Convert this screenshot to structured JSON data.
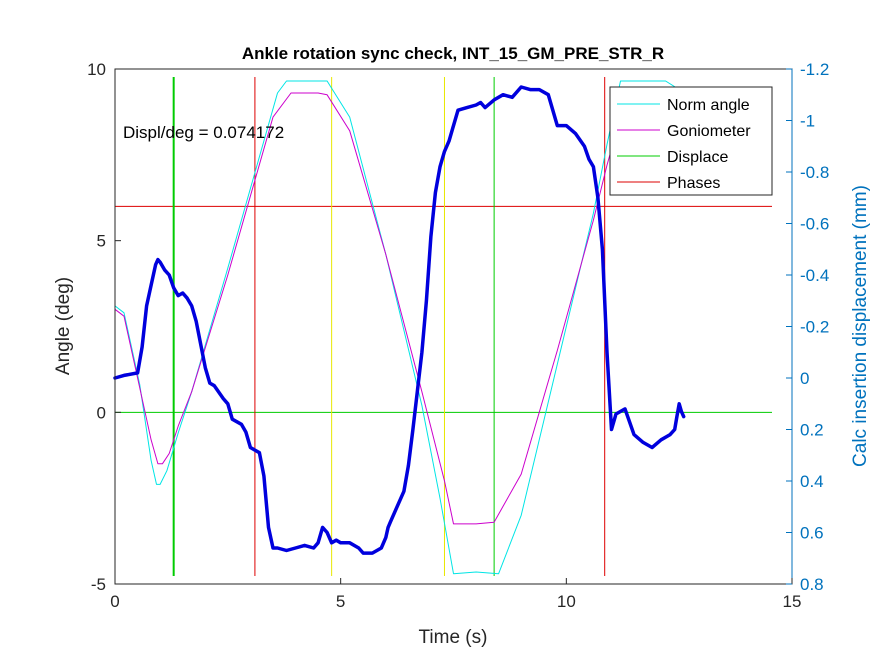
{
  "chart_data": {
    "type": "line",
    "title": "Ankle rotation sync check, INT_15_GM_PRE_STR_R",
    "xlabel": "Time (s)",
    "ylabel_left": "Angle (deg)",
    "ylabel_right": "Calc insertion displacement (mm)",
    "xlim": [
      0,
      15
    ],
    "ylim_left": [
      -5,
      10
    ],
    "ylim_right": [
      0.8,
      -1.2
    ],
    "right_axis_reversed": true,
    "x_ticks": [
      0,
      5,
      10,
      15
    ],
    "x_tick_labels": [
      "0",
      "5",
      "10",
      "15"
    ],
    "y_left_ticks": [
      -5,
      0,
      5,
      10
    ],
    "y_left_tick_labels": [
      "-5",
      "0",
      "5",
      "10"
    ],
    "y_right_ticks": [
      0.8,
      0.6,
      0.4,
      0.2,
      0,
      -0.2,
      -0.4,
      -0.6,
      -0.8,
      -1,
      -1.2
    ],
    "y_right_tick_labels": [
      "0.8",
      "0.6",
      "0.4",
      "0.2",
      "0",
      "-0.2",
      "-0.4",
      "-0.6",
      "-0.8",
      "-1",
      "-1.2"
    ],
    "annotation": "Displ/deg = 0.074172",
    "legend_position": "top-right",
    "legend": [
      {
        "label": "Norm angle",
        "color": "#00e5e5"
      },
      {
        "label": "Goniometer",
        "color": "#cc00cc"
      },
      {
        "label": "Displace",
        "color": "#00cc00"
      },
      {
        "label": "Phases",
        "color": "#dd0000"
      }
    ],
    "series": [
      {
        "name": "Norm angle",
        "axis": "left",
        "color": "#00e5e5",
        "x": [
          0,
          0.2,
          0.55,
          0.8,
          0.92,
          1.0,
          1.15,
          1.4,
          1.7,
          2.5,
          3.6,
          3.8,
          4.5,
          4.7,
          5.2,
          6.0,
          6.8,
          7.2,
          7.5,
          8.0,
          8.5,
          9.0,
          9.8,
          10.6,
          10.9,
          11.2,
          11.7,
          12.2,
          12.5
        ],
        "y": [
          3.1,
          2.9,
          0.8,
          -1.4,
          -2.1,
          -2.1,
          -1.7,
          -0.6,
          0.6,
          4.2,
          9.3,
          9.65,
          9.65,
          9.65,
          8.6,
          4.6,
          0.2,
          -2.5,
          -4.7,
          -4.65,
          -4.7,
          -3.0,
          1.4,
          5.8,
          7.8,
          9.65,
          9.65,
          9.65,
          9.4
        ]
      },
      {
        "name": "Goniometer",
        "axis": "left",
        "color": "#cc00cc",
        "x": [
          0,
          0.2,
          0.5,
          0.8,
          0.95,
          1.05,
          1.2,
          1.4,
          1.7,
          2.5,
          3.5,
          3.9,
          4.5,
          4.7,
          5.2,
          6.0,
          6.8,
          7.3,
          7.5,
          8.0,
          8.4,
          9.0,
          9.8,
          10.6,
          10.9,
          11.2,
          11.7,
          12.2,
          12.5
        ],
        "y": [
          3.0,
          2.8,
          1.0,
          -0.8,
          -1.5,
          -1.5,
          -1.2,
          -0.4,
          0.6,
          4.0,
          8.6,
          9.3,
          9.3,
          9.25,
          8.2,
          4.6,
          0.6,
          -2.0,
          -3.25,
          -3.25,
          -3.2,
          -1.8,
          1.8,
          5.6,
          7.2,
          8.6,
          9.2,
          9.2,
          9.1
        ]
      },
      {
        "name": "Displace",
        "axis": "right",
        "color": "#0000dd",
        "x": [
          0,
          0.2,
          0.5,
          0.6,
          0.7,
          0.8,
          0.9,
          0.95,
          1.0,
          1.1,
          1.2,
          1.3,
          1.4,
          1.5,
          1.6,
          1.7,
          1.8,
          2.0,
          2.1,
          2.2,
          2.4,
          2.5,
          2.6,
          2.8,
          2.9,
          3.0,
          3.1,
          3.2,
          3.3,
          3.4,
          3.5,
          3.6,
          3.8,
          4.0,
          4.2,
          4.4,
          4.5,
          4.6,
          4.7,
          4.8,
          4.9,
          5.0,
          5.2,
          5.4,
          5.5,
          5.7,
          5.9,
          6.0,
          6.05,
          6.1,
          6.2,
          6.4,
          6.5,
          6.6,
          6.7,
          6.8,
          6.9,
          7.0,
          7.1,
          7.2,
          7.3,
          7.4,
          7.5,
          7.6,
          7.8,
          8.0,
          8.1,
          8.2,
          8.4,
          8.6,
          8.8,
          9.0,
          9.2,
          9.4,
          9.6,
          9.8,
          10.0,
          10.2,
          10.4,
          10.5,
          10.6,
          10.7,
          10.8,
          10.9,
          11.0,
          11.1,
          11.3,
          11.5,
          11.7,
          11.9,
          12.1,
          12.3,
          12.4,
          12.45,
          12.5,
          12.55,
          12.6
        ],
        "y": [
          0.0,
          -0.01,
          -0.02,
          -0.12,
          -0.28,
          -0.36,
          -0.44,
          -0.46,
          -0.45,
          -0.42,
          -0.4,
          -0.35,
          -0.32,
          -0.33,
          -0.31,
          -0.28,
          -0.22,
          -0.04,
          0.02,
          0.03,
          0.08,
          0.1,
          0.16,
          0.18,
          0.21,
          0.27,
          0.28,
          0.29,
          0.38,
          0.58,
          0.66,
          0.66,
          0.67,
          0.66,
          0.65,
          0.66,
          0.64,
          0.58,
          0.6,
          0.64,
          0.63,
          0.64,
          0.64,
          0.66,
          0.68,
          0.68,
          0.66,
          0.62,
          0.58,
          0.56,
          0.52,
          0.44,
          0.34,
          0.2,
          0.05,
          -0.1,
          -0.3,
          -0.55,
          -0.72,
          -0.82,
          -0.88,
          -0.92,
          -0.98,
          -1.04,
          -1.05,
          -1.06,
          -1.07,
          -1.05,
          -1.08,
          -1.1,
          -1.09,
          -1.13,
          -1.12,
          -1.12,
          -1.1,
          -0.98,
          -0.98,
          -0.95,
          -0.9,
          -0.85,
          -0.82,
          -0.7,
          -0.5,
          -0.1,
          0.2,
          0.14,
          0.12,
          0.22,
          0.25,
          0.27,
          0.24,
          0.22,
          0.2,
          0.15,
          0.1,
          0.13,
          0.15
        ]
      }
    ],
    "reference_lines": [
      {
        "name": "Displace",
        "orientation": "horizontal",
        "axis": "left",
        "value": 0,
        "color": "#00cc00"
      },
      {
        "name": "Phases",
        "orientation": "horizontal",
        "axis": "left",
        "value": 6,
        "color": "#dd0000"
      },
      {
        "name": "Displace",
        "orientation": "vertical",
        "value": 1.3,
        "color": "#00cc00"
      },
      {
        "name": "Displace",
        "orientation": "vertical",
        "value": 8.4,
        "color": "#00cc00"
      },
      {
        "name": "Phases",
        "orientation": "vertical",
        "value": 3.1,
        "color": "#dd0000"
      },
      {
        "name": "Phases",
        "orientation": "vertical",
        "value": 10.85,
        "color": "#dd0000"
      },
      {
        "name": "Phases",
        "orientation": "vertical",
        "value": 4.8,
        "color": "#e8e800"
      },
      {
        "name": "Phases",
        "orientation": "vertical",
        "value": 7.3,
        "color": "#e8e800"
      }
    ],
    "colors": {
      "axis_left": "#262626",
      "axis_right": "#0072bd",
      "yellow_phase": "#e8e800"
    }
  }
}
